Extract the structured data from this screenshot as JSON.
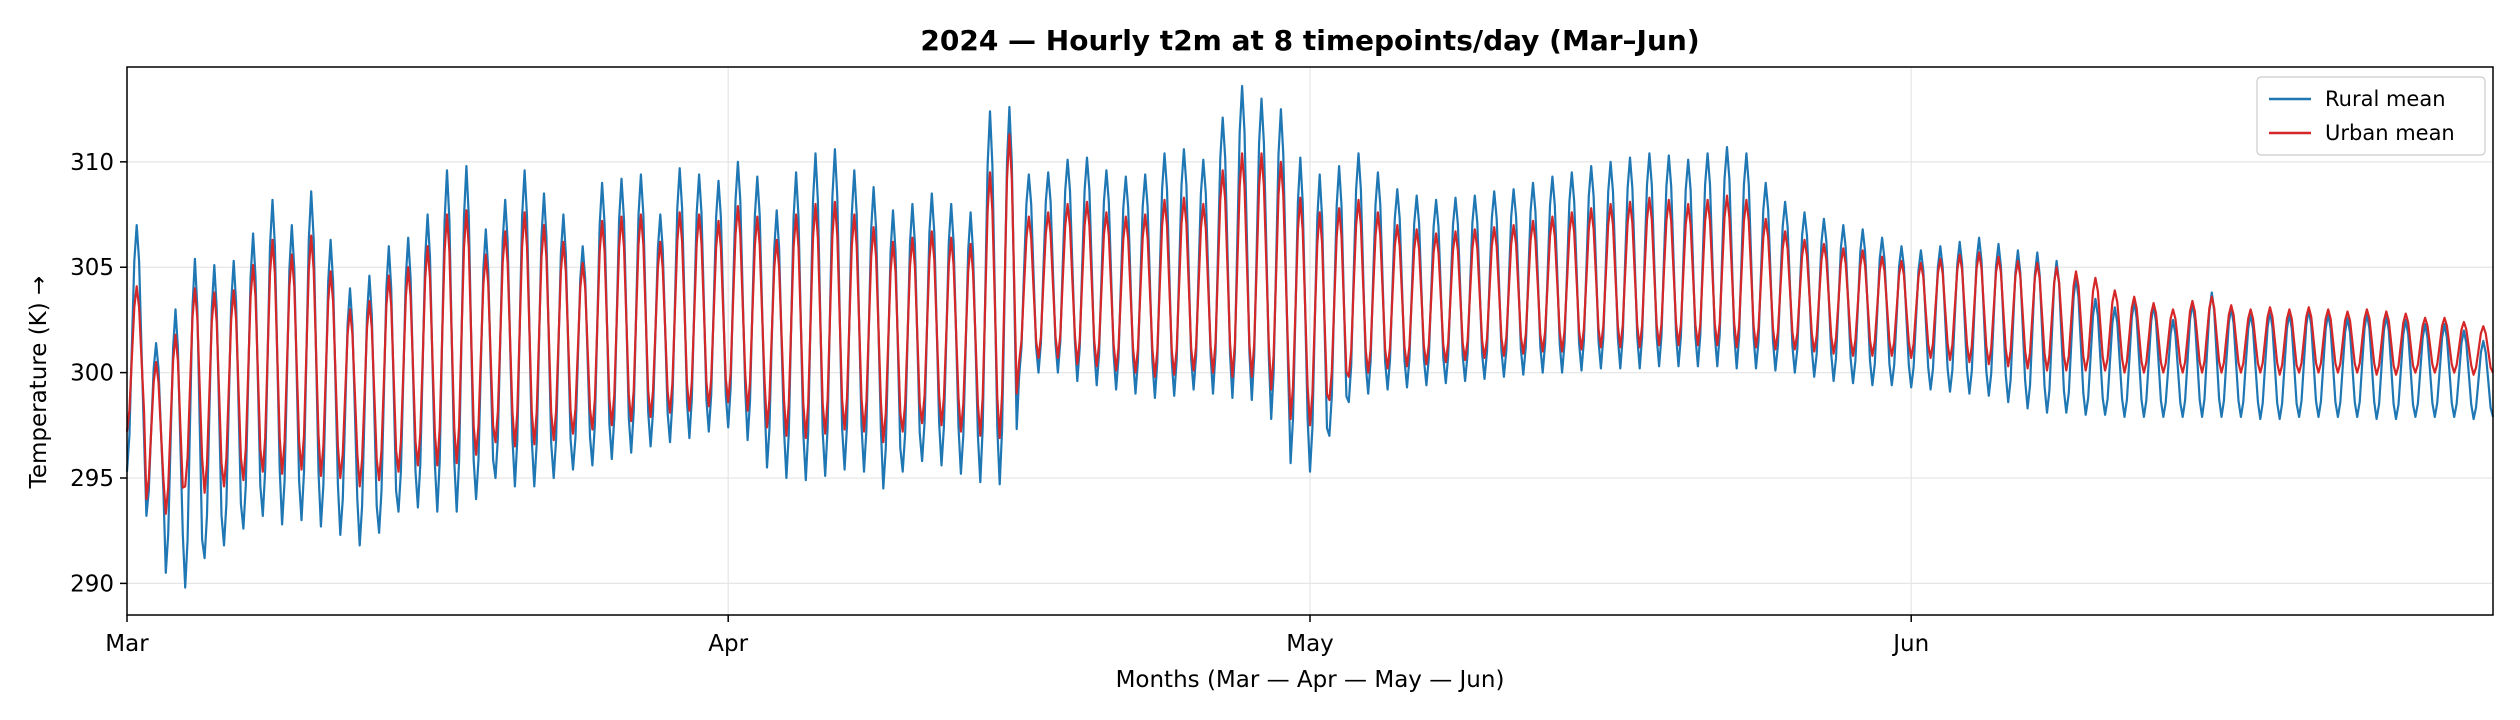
{
  "chart_data": {
    "type": "line",
    "title": "2024 — Hourly t2m at 8 timepoints/day (Mar–Jun)",
    "xlabel": "Months (Mar — Apr — May — Jun)",
    "ylabel": "Temperature (K) →",
    "x_ticks": [
      "Mar",
      "Apr",
      "May",
      "Jun"
    ],
    "x_tick_days": [
      0,
      31,
      61,
      92
    ],
    "x_range_days": [
      0,
      122
    ],
    "points_per_day": 8,
    "ylim": [
      288.5,
      314.5
    ],
    "yticks": [
      290,
      295,
      300,
      305,
      310
    ],
    "grid": true,
    "legend_position": "top-right",
    "series": [
      {
        "name": "Rural mean",
        "color": "#1f77b4",
        "daily_min": [
          295.3,
          293.2,
          290.5,
          289.8,
          291.2,
          291.8,
          292.6,
          293.2,
          292.8,
          293.0,
          292.7,
          292.3,
          291.8,
          292.4,
          293.4,
          293.6,
          293.4,
          293.4,
          294.0,
          295.0,
          294.6,
          294.6,
          295.0,
          295.4,
          295.6,
          295.9,
          296.2,
          296.5,
          296.7,
          296.9,
          297.2,
          297.4,
          296.8,
          295.5,
          295.0,
          294.9,
          295.1,
          295.4,
          295.3,
          294.5,
          295.3,
          295.8,
          295.6,
          295.2,
          294.8,
          294.7,
          299.8,
          300.0,
          300.0,
          299.6,
          299.4,
          299.2,
          299.0,
          298.8,
          298.9,
          299.2,
          299.0,
          298.8,
          298.7,
          297.8,
          295.7,
          295.3,
          297.0,
          298.6,
          299.0,
          299.2,
          299.3,
          299.4,
          299.5,
          299.6,
          299.7,
          299.8,
          299.9,
          300.0,
          300.0,
          300.1,
          300.2,
          300.2,
          300.2,
          300.3,
          300.3,
          300.3,
          300.3,
          300.2,
          300.2,
          300.1,
          300.0,
          299.8,
          299.6,
          299.5,
          299.4,
          299.4,
          299.3,
          299.2,
          299.1,
          299.0,
          298.9,
          298.6,
          298.3,
          298.1,
          298.1,
          298.0,
          298.0,
          297.9,
          297.9,
          297.9,
          297.9,
          297.9,
          297.9,
          297.9,
          297.8,
          297.8,
          297.9,
          297.9,
          297.9,
          297.9,
          297.8,
          297.8,
          297.9,
          297.9,
          297.9,
          297.8,
          297.9
        ],
        "daily_max": [
          307.0,
          301.4,
          303.0,
          305.4,
          305.1,
          305.3,
          306.6,
          308.2,
          307.0,
          308.6,
          306.3,
          304.0,
          304.6,
          306.0,
          306.4,
          307.5,
          309.6,
          309.8,
          306.8,
          308.2,
          309.6,
          308.5,
          307.5,
          306.0,
          309.0,
          309.2,
          309.4,
          307.5,
          309.7,
          309.4,
          309.1,
          310.0,
          309.3,
          307.7,
          309.5,
          310.4,
          310.6,
          309.6,
          308.8,
          307.7,
          308.0,
          308.5,
          308.0,
          307.6,
          312.4,
          312.6,
          309.4,
          309.5,
          310.1,
          310.2,
          309.6,
          309.3,
          309.4,
          310.4,
          310.6,
          310.1,
          312.1,
          313.6,
          313.0,
          312.5,
          310.2,
          309.4,
          309.8,
          310.4,
          309.5,
          308.7,
          308.4,
          308.2,
          308.3,
          308.4,
          308.6,
          308.7,
          309.0,
          309.3,
          309.5,
          309.8,
          310.0,
          310.2,
          310.4,
          310.3,
          310.1,
          310.4,
          310.7,
          310.4,
          309.0,
          308.1,
          307.6,
          307.3,
          307.0,
          306.8,
          306.4,
          306.0,
          305.8,
          306.0,
          306.2,
          306.4,
          306.1,
          305.8,
          305.7,
          305.3,
          304.5,
          303.5,
          303.1,
          303.4,
          303.2,
          302.5,
          303.3,
          303.8,
          303.1,
          302.8,
          302.9,
          302.8,
          303.0,
          302.8,
          302.6,
          302.8,
          302.7,
          302.5,
          302.3,
          302.3,
          302.0,
          301.5,
          301.0
        ]
      },
      {
        "name": "Urban mean",
        "color": "#d62728",
        "daily_min": [
          297.2,
          294.0,
          293.3,
          294.6,
          294.3,
          294.6,
          294.9,
          295.3,
          295.2,
          295.4,
          295.1,
          295.0,
          294.6,
          294.9,
          295.3,
          295.6,
          295.6,
          295.7,
          296.1,
          296.7,
          296.5,
          296.6,
          296.8,
          297.1,
          297.3,
          297.5,
          297.7,
          297.9,
          298.1,
          298.2,
          298.4,
          298.6,
          298.2,
          297.4,
          297.0,
          296.9,
          297.1,
          297.3,
          297.2,
          296.7,
          297.2,
          297.6,
          297.5,
          297.2,
          297.0,
          296.9,
          300.5,
          300.7,
          300.7,
          300.4,
          300.3,
          300.1,
          300.0,
          299.8,
          299.9,
          300.1,
          300.0,
          299.8,
          299.8,
          299.2,
          297.8,
          297.5,
          298.7,
          299.8,
          300.0,
          300.2,
          300.3,
          300.4,
          300.5,
          300.6,
          300.7,
          300.8,
          300.9,
          301.0,
          301.0,
          301.1,
          301.2,
          301.2,
          301.2,
          301.3,
          301.3,
          301.3,
          301.3,
          301.2,
          301.2,
          301.1,
          301.1,
          301.0,
          300.9,
          300.8,
          300.8,
          300.8,
          300.7,
          300.7,
          300.6,
          300.5,
          300.4,
          300.3,
          300.2,
          300.1,
          300.1,
          300.1,
          300.1,
          300.0,
          300.0,
          300.0,
          300.0,
          300.0,
          300.0,
          300.0,
          300.0,
          299.9,
          300.0,
          300.0,
          300.0,
          300.0,
          299.9,
          299.9,
          300.0,
          300.0,
          300.0,
          299.9,
          300.0
        ],
        "daily_max": [
          304.1,
          300.5,
          301.8,
          304.0,
          303.8,
          303.9,
          305.1,
          306.3,
          305.6,
          306.5,
          304.8,
          303.0,
          303.4,
          304.6,
          305.0,
          306.0,
          307.5,
          307.7,
          305.6,
          306.7,
          307.6,
          307.0,
          306.2,
          305.2,
          307.2,
          307.4,
          307.5,
          306.2,
          307.6,
          307.5,
          307.2,
          307.9,
          307.4,
          306.3,
          307.5,
          308.0,
          308.1,
          307.5,
          306.9,
          306.2,
          306.4,
          306.7,
          306.4,
          306.1,
          309.5,
          311.3,
          307.4,
          307.6,
          308.0,
          308.1,
          307.6,
          307.4,
          307.5,
          308.2,
          308.3,
          308.0,
          309.6,
          310.4,
          310.4,
          310.0,
          308.3,
          307.6,
          307.8,
          308.2,
          307.6,
          307.0,
          306.8,
          306.6,
          306.7,
          306.8,
          306.9,
          307.0,
          307.2,
          307.4,
          307.6,
          307.8,
          308.0,
          308.1,
          308.3,
          308.2,
          308.0,
          308.2,
          308.4,
          308.2,
          307.3,
          306.7,
          306.3,
          306.1,
          305.9,
          305.8,
          305.5,
          305.3,
          305.2,
          305.4,
          305.6,
          305.7,
          305.5,
          305.3,
          305.2,
          305.0,
          304.8,
          304.5,
          303.9,
          303.6,
          303.3,
          303.0,
          303.4,
          303.6,
          303.2,
          303.0,
          303.1,
          303.0,
          303.1,
          303.0,
          302.9,
          303.0,
          302.9,
          302.8,
          302.6,
          302.6,
          302.4,
          302.2,
          302.0
        ]
      }
    ]
  }
}
